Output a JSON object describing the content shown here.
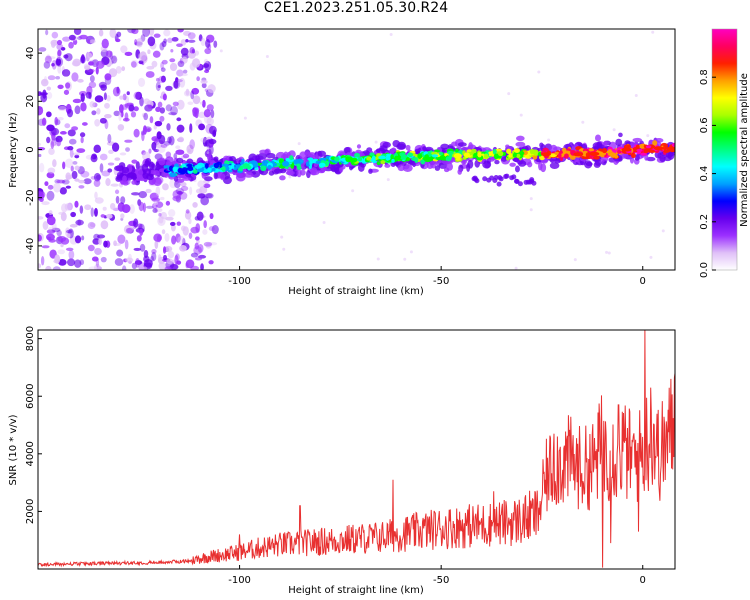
{
  "figure": {
    "title": "C2E1.2023.251.05.30.R24"
  },
  "chart_data": [
    {
      "type": "heatmap",
      "xlabel": "Height of straight line (km)",
      "ylabel": "Frequency (Hz)",
      "xlim": [
        -150,
        8
      ],
      "ylim": [
        -50,
        50
      ],
      "xticks": [
        -100,
        -50,
        0
      ],
      "yticks": [
        -40,
        -20,
        0,
        20,
        40
      ],
      "ridge": {
        "x": [
          -127,
          -120,
          -110,
          -100,
          -90,
          -80,
          -70,
          -60,
          -50,
          -40,
          -30,
          -20,
          -10,
          0,
          8
        ],
        "y": [
          -10,
          -9,
          -8,
          -7,
          -6,
          -5,
          -4,
          -3,
          -2.5,
          -2,
          -2,
          -2,
          -1.5,
          0,
          0.5
        ]
      },
      "noise_region_x": [
        -150,
        -112
      ],
      "colorbar": {
        "label": "Normalized spectral amplitude",
        "range": [
          0,
          1
        ],
        "ticks": [
          0.0,
          0.2,
          0.4,
          0.6,
          0.8
        ],
        "tick_labels": [
          "0.0",
          "0.2",
          "0.4",
          "0.6",
          "0.8"
        ],
        "colormap": [
          "#ffffff",
          "#e0c0f8",
          "#9b30ff",
          "#6600ee",
          "#0000ff",
          "#00a0ff",
          "#00ffff",
          "#00ff80",
          "#00ff00",
          "#aaff00",
          "#ffff00",
          "#ffa000",
          "#ff2000",
          "#ff0060",
          "#ff00c0"
        ]
      }
    },
    {
      "type": "line",
      "xlabel": "Height of straight line (km)",
      "ylabel": "SNR (10 * v/v)",
      "xlim": [
        -150,
        8
      ],
      "ylim": [
        0,
        8300
      ],
      "xticks": [
        -100,
        -50,
        0
      ],
      "yticks": [
        2000,
        4000,
        6000,
        8000
      ],
      "series": [
        {
          "color": "#e83030",
          "x": [
            -150,
            -140,
            -130,
            -120,
            -112,
            -108,
            -100,
            -95,
            -90,
            -85,
            -80,
            -75,
            -70,
            -65,
            -60,
            -55,
            -50,
            -45,
            -40,
            -35,
            -30,
            -26,
            -24,
            -22,
            -18,
            -15,
            -12,
            -10,
            -8,
            -5,
            -2,
            0,
            2,
            4,
            6,
            8
          ],
          "y": [
            150,
            180,
            200,
            230,
            280,
            400,
            550,
            700,
            800,
            850,
            900,
            950,
            1000,
            1050,
            1150,
            1250,
            1350,
            1400,
            1450,
            1500,
            1600,
            1800,
            3000,
            3500,
            3600,
            3300,
            3500,
            4200,
            3800,
            4000,
            3600,
            3900,
            4600,
            3800,
            4200,
            5000
          ],
          "peaks": [
            {
              "x": 0.5,
              "y": 8300
            },
            {
              "x": -10,
              "y": 7000
            },
            {
              "x": -6,
              "y": 5700
            },
            {
              "x": 2,
              "y": 6300
            },
            {
              "x": -22,
              "y": 4700
            },
            {
              "x": 8,
              "y": 6800
            },
            {
              "x": -62,
              "y": 3100
            },
            {
              "x": -37,
              "y": 2700
            },
            {
              "x": -85,
              "y": 2200
            },
            {
              "x": -100,
              "y": 1200
            }
          ],
          "dips": [
            {
              "x": -10,
              "y": 50
            },
            {
              "x": -8,
              "y": 900
            },
            {
              "x": -1,
              "y": 1300
            }
          ]
        }
      ]
    }
  ]
}
